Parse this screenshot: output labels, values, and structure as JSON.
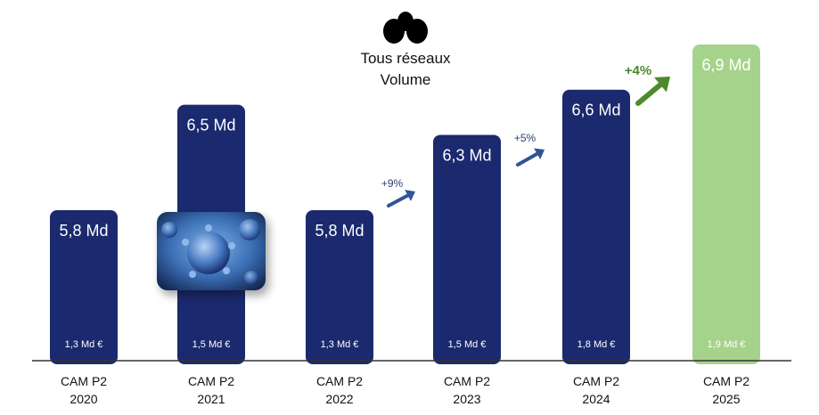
{
  "title": {
    "line1": "Tous réseaux",
    "line2": "Volume"
  },
  "colors": {
    "bar": "#1b2a6e",
    "bar_highlight": "#a6d38b",
    "arrow_blue": "#2f5597",
    "arrow_green": "#4e8a2c",
    "text_dark": "#111111"
  },
  "chart_data": {
    "type": "bar",
    "categories": [
      "CAM P2\n2020",
      "CAM P2\n2021",
      "CAM P2\n2022",
      "CAM P2\n2023",
      "CAM P2\n2024",
      "CAM P2\n2025"
    ],
    "category_lines": [
      [
        "CAM P2",
        "2020"
      ],
      [
        "CAM P2",
        "2021"
      ],
      [
        "CAM P2",
        "2022"
      ],
      [
        "CAM P2",
        "2023"
      ],
      [
        "CAM P2",
        "2024"
      ],
      [
        "CAM P2",
        "2025"
      ]
    ],
    "values": [
      5.8,
      6.5,
      5.8,
      6.3,
      6.6,
      6.9
    ],
    "value_labels": [
      "5,8 Md",
      "6,5 Md",
      "5,8 Md",
      "6,3 Md",
      "6,6 Md",
      "6,9 Md"
    ],
    "amount_labels": [
      "1,3 Md €",
      "1,5 Md €",
      "1,3 Md €",
      "1,5 Md €",
      "1,8 Md €",
      "1,9 Md €"
    ],
    "highlight_index": 5,
    "growth_annotations": [
      {
        "between": [
          2,
          3
        ],
        "label": "+9%",
        "color": "blue"
      },
      {
        "between": [
          3,
          4
        ],
        "label": "+5%",
        "color": "blue"
      },
      {
        "between": [
          4,
          5
        ],
        "label": "+4%",
        "color": "green"
      }
    ],
    "xlabel": "",
    "ylabel": "",
    "grid": false,
    "legend": "none"
  }
}
